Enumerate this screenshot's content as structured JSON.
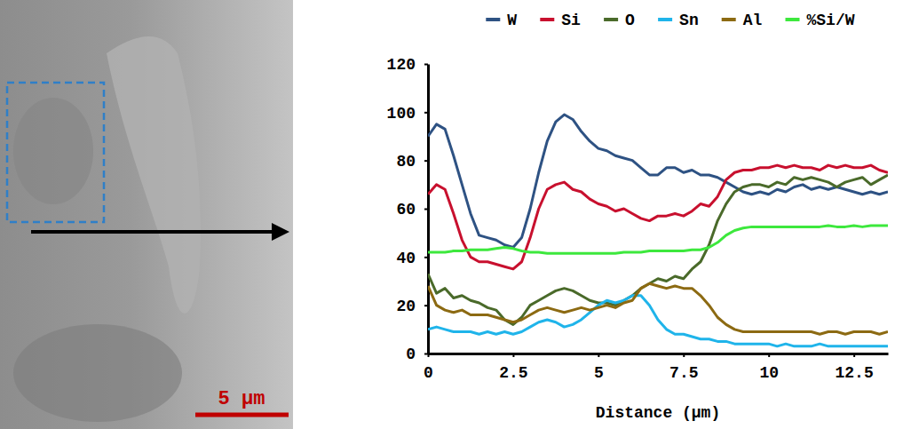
{
  "image": {
    "scale_bar": "5 μm"
  },
  "chart_data": {
    "type": "line",
    "x_label": "Distance (μm)",
    "xlim": [
      0,
      13.5
    ],
    "xticks": [
      0,
      2.5,
      5,
      7.5,
      10,
      12.5
    ],
    "ylim": [
      0,
      120
    ],
    "yticks": [
      0,
      20,
      40,
      60,
      80,
      100,
      120
    ],
    "grid": false,
    "legend": "top",
    "x": [
      0,
      0.25,
      0.5,
      0.75,
      1,
      1.25,
      1.5,
      1.75,
      2,
      2.25,
      2.5,
      2.75,
      3,
      3.25,
      3.5,
      3.75,
      4,
      4.25,
      4.5,
      4.75,
      5,
      5.25,
      5.5,
      5.75,
      6,
      6.25,
      6.5,
      6.75,
      7,
      7.25,
      7.5,
      7.75,
      8,
      8.25,
      8.5,
      8.75,
      9,
      9.25,
      9.5,
      9.75,
      10,
      10.25,
      10.5,
      10.75,
      11,
      11.25,
      11.5,
      11.75,
      12,
      12.25,
      12.5,
      12.75,
      13,
      13.25,
      13.5
    ],
    "series": [
      {
        "name": "W",
        "color": "#2e5283",
        "values": [
          90,
          95,
          93,
          82,
          70,
          58,
          49,
          48,
          47,
          45,
          44,
          48,
          60,
          75,
          88,
          96,
          99,
          97,
          92,
          88,
          85,
          84,
          82,
          81,
          80,
          77,
          74,
          74,
          77,
          77,
          75,
          76,
          74,
          74,
          73,
          71,
          69,
          67,
          66,
          67,
          66,
          68,
          67,
          69,
          70,
          68,
          69,
          68,
          69,
          68,
          67,
          66,
          67,
          66,
          67
        ]
      },
      {
        "name": "Si",
        "color": "#c8102e",
        "values": [
          66,
          70,
          68,
          58,
          47,
          40,
          38,
          38,
          37,
          36,
          35,
          38,
          48,
          60,
          68,
          70,
          71,
          68,
          67,
          64,
          62,
          61,
          59,
          60,
          58,
          56,
          55,
          57,
          57,
          58,
          57,
          59,
          62,
          61,
          65,
          72,
          75,
          76,
          76,
          77,
          77,
          78,
          77,
          78,
          77,
          77,
          76,
          78,
          77,
          78,
          77,
          77,
          78,
          76,
          75
        ]
      },
      {
        "name": "O",
        "color": "#4a6a2a",
        "values": [
          33,
          25,
          27,
          23,
          24,
          22,
          21,
          19,
          18,
          14,
          12,
          15,
          20,
          22,
          24,
          26,
          27,
          26,
          24,
          22,
          21,
          21,
          20,
          22,
          24,
          27,
          29,
          31,
          30,
          32,
          31,
          35,
          38,
          45,
          55,
          62,
          67,
          69,
          70,
          70,
          69,
          71,
          70,
          73,
          72,
          73,
          72,
          71,
          69,
          71,
          72,
          73,
          70,
          72,
          74
        ]
      },
      {
        "name": "Sn",
        "color": "#1fb4ea",
        "values": [
          10,
          11,
          10,
          9,
          9,
          9,
          8,
          9,
          8,
          9,
          8,
          9,
          11,
          13,
          14,
          13,
          11,
          12,
          14,
          17,
          20,
          22,
          21,
          22,
          24,
          24,
          20,
          14,
          10,
          8,
          8,
          7,
          6,
          6,
          5,
          5,
          4,
          4,
          4,
          4,
          4,
          3,
          4,
          3,
          3,
          3,
          4,
          3,
          3,
          3,
          3,
          3,
          3,
          3,
          3
        ]
      },
      {
        "name": "Al",
        "color": "#8c6a12",
        "values": [
          28,
          20,
          18,
          17,
          18,
          16,
          16,
          16,
          15,
          14,
          13,
          14,
          16,
          18,
          19,
          18,
          17,
          18,
          19,
          18,
          19,
          20,
          19,
          21,
          22,
          27,
          29,
          28,
          27,
          28,
          27,
          27,
          24,
          20,
          15,
          12,
          10,
          9,
          9,
          9,
          9,
          9,
          9,
          9,
          9,
          9,
          8,
          9,
          9,
          8,
          9,
          9,
          9,
          8,
          9
        ]
      },
      {
        "name": "%Si/W",
        "color": "#3de83d",
        "values": [
          42,
          42,
          42,
          42.5,
          42.5,
          43,
          43,
          43,
          43.5,
          44,
          43.5,
          42.5,
          42,
          42,
          41.5,
          41.5,
          41.5,
          41.5,
          41.5,
          41.5,
          41.5,
          41.5,
          41.5,
          42,
          42,
          42,
          42.5,
          42.5,
          42.5,
          42.5,
          42.5,
          43,
          43,
          44,
          46,
          49,
          51,
          52,
          52.5,
          52.5,
          52.5,
          52.5,
          52.5,
          52.5,
          52.5,
          52.5,
          52.5,
          53,
          52.5,
          52.5,
          53,
          52.5,
          53,
          53,
          53
        ]
      }
    ]
  }
}
